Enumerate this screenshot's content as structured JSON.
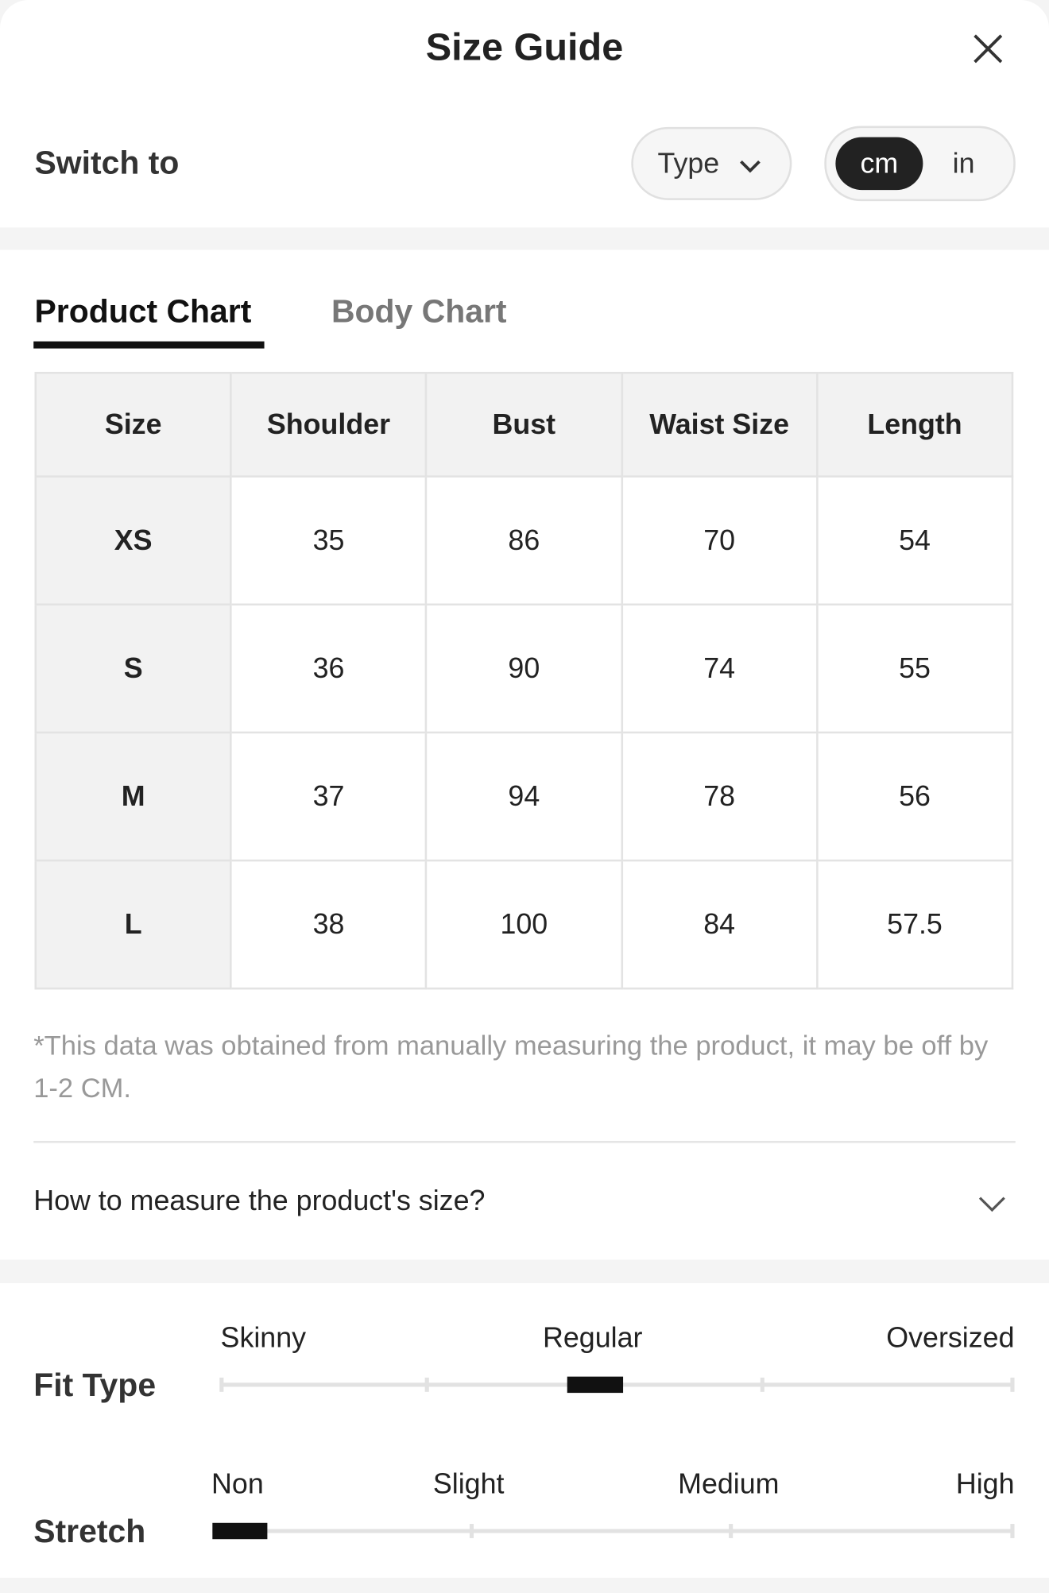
{
  "header": {
    "title": "Size Guide"
  },
  "switch": {
    "label": "Switch to",
    "type_label": "Type",
    "units": [
      "cm",
      "in"
    ]
  },
  "tabs": [
    "Product Chart",
    "Body Chart"
  ],
  "table": {
    "header": [
      "Size",
      "Shoulder",
      "Bust",
      "Waist Size",
      "Length"
    ],
    "rows": [
      [
        "XS",
        "35",
        "86",
        "70",
        "54"
      ],
      [
        "S",
        "36",
        "90",
        "74",
        "55"
      ],
      [
        "M",
        "37",
        "94",
        "78",
        "56"
      ],
      [
        "L",
        "38",
        "100",
        "84",
        "57.5"
      ]
    ]
  },
  "note": "*This data was obtained from manually measuring the product, it may be off by 1-2 CM.",
  "faq": "How to measure the product's size?",
  "fit_type": {
    "label": "Fit Type",
    "scale": [
      "Skinny",
      "Regular",
      "Oversized"
    ]
  },
  "stretch": {
    "label": "Stretch",
    "scale": [
      "Non",
      "Slight",
      "Medium",
      "High"
    ]
  }
}
